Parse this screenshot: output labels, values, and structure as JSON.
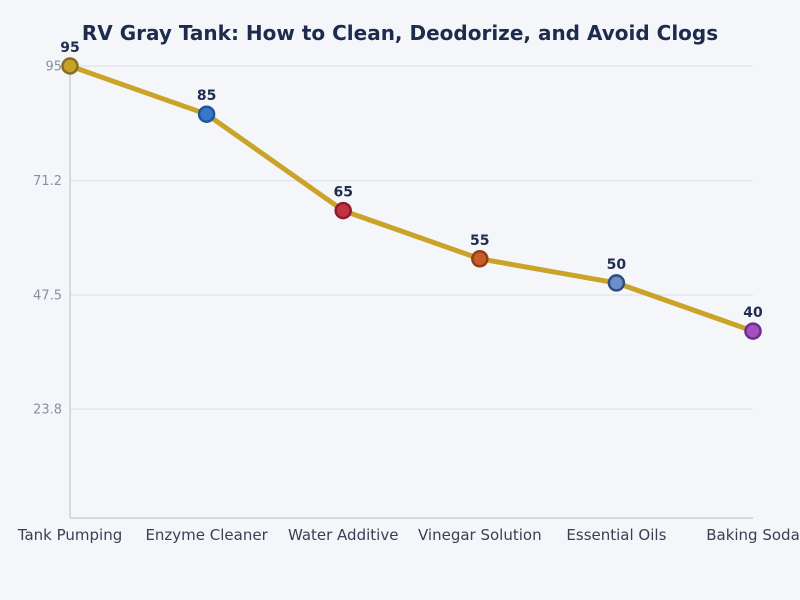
{
  "chart_data": {
    "type": "line",
    "title": "RV Gray Tank: How to Clean, Deodorize, and Avoid Clogs",
    "categories": [
      "Tank Pumping",
      "Enzyme Cleaner",
      "Water Additive",
      "Vinegar Solution",
      "Essential Oils",
      "Baking Soda"
    ],
    "values": [
      95,
      85,
      65,
      55,
      50,
      40
    ],
    "value_labels": [
      "95",
      "85",
      "65",
      "55",
      "50",
      "40"
    ],
    "y_ticks": [
      {
        "label": "95",
        "value": 95
      },
      {
        "label": "71.2",
        "value": 71.2
      },
      {
        "label": "47.5",
        "value": 47.5
      },
      {
        "label": "23.8",
        "value": 23.8
      }
    ],
    "ylim": [
      0,
      95
    ],
    "xlabel": "",
    "ylabel": "",
    "grid": true,
    "legend_position": "none",
    "line_color": "#c9a429",
    "point_styles": [
      {
        "fill": "#c7a128",
        "stroke": "#857022"
      },
      {
        "fill": "#3779c7",
        "stroke": "#20549b"
      },
      {
        "fill": "#c4313f",
        "stroke": "#8c1f2b"
      },
      {
        "fill": "#c95b26",
        "stroke": "#8f3e16"
      },
      {
        "fill": "#6d8fc9",
        "stroke": "#2f4d7d"
      },
      {
        "fill": "#a64fc2",
        "stroke": "#6b2e89"
      }
    ],
    "colors": {
      "background": "#f5f6fa",
      "title_text": "#1d2b4d",
      "value_label_text": "#1f2d4f",
      "y_tick_text": "#8a90a0",
      "x_tick_text": "#3a4053",
      "gridline": "#dcdfe6",
      "axis_line": "#c3c8d2"
    }
  }
}
